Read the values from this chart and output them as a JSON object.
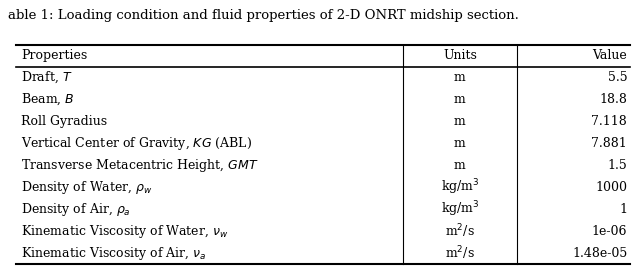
{
  "title": "able 1: Loading condition and fluid properties of 2-D ONRT midship section.",
  "headers": [
    "Properties",
    "Units",
    "Value"
  ],
  "rows": [
    [
      "Draft, $T$",
      "m",
      "5.5"
    ],
    [
      "Beam, $B$",
      "m",
      "18.8"
    ],
    [
      "Roll Gyradius",
      "m",
      "7.118"
    ],
    [
      "Vertical Center of Gravity, $KG$ (ABL)",
      "m",
      "7.881"
    ],
    [
      "Transverse Metacentric Height, $GMT$",
      "m",
      "1.5"
    ],
    [
      "Density of Water, $\\rho_w$",
      "kg/m$^3$",
      "1000"
    ],
    [
      "Density of Air, $\\rho_a$",
      "kg/m$^3$",
      "1"
    ],
    [
      "Kinematic Viscosity of Water, $\\nu_w$",
      "m$^2$/s",
      "1e-06"
    ],
    [
      "Kinematic Viscosity of Air, $\\nu_a$",
      "m$^2$/s",
      "1.48e-05"
    ]
  ],
  "figsize": [
    6.4,
    2.71
  ],
  "dpi": 100,
  "background_color": "#ffffff",
  "line_color": "#000000",
  "font_size": 9.0,
  "title_font_size": 9.5
}
